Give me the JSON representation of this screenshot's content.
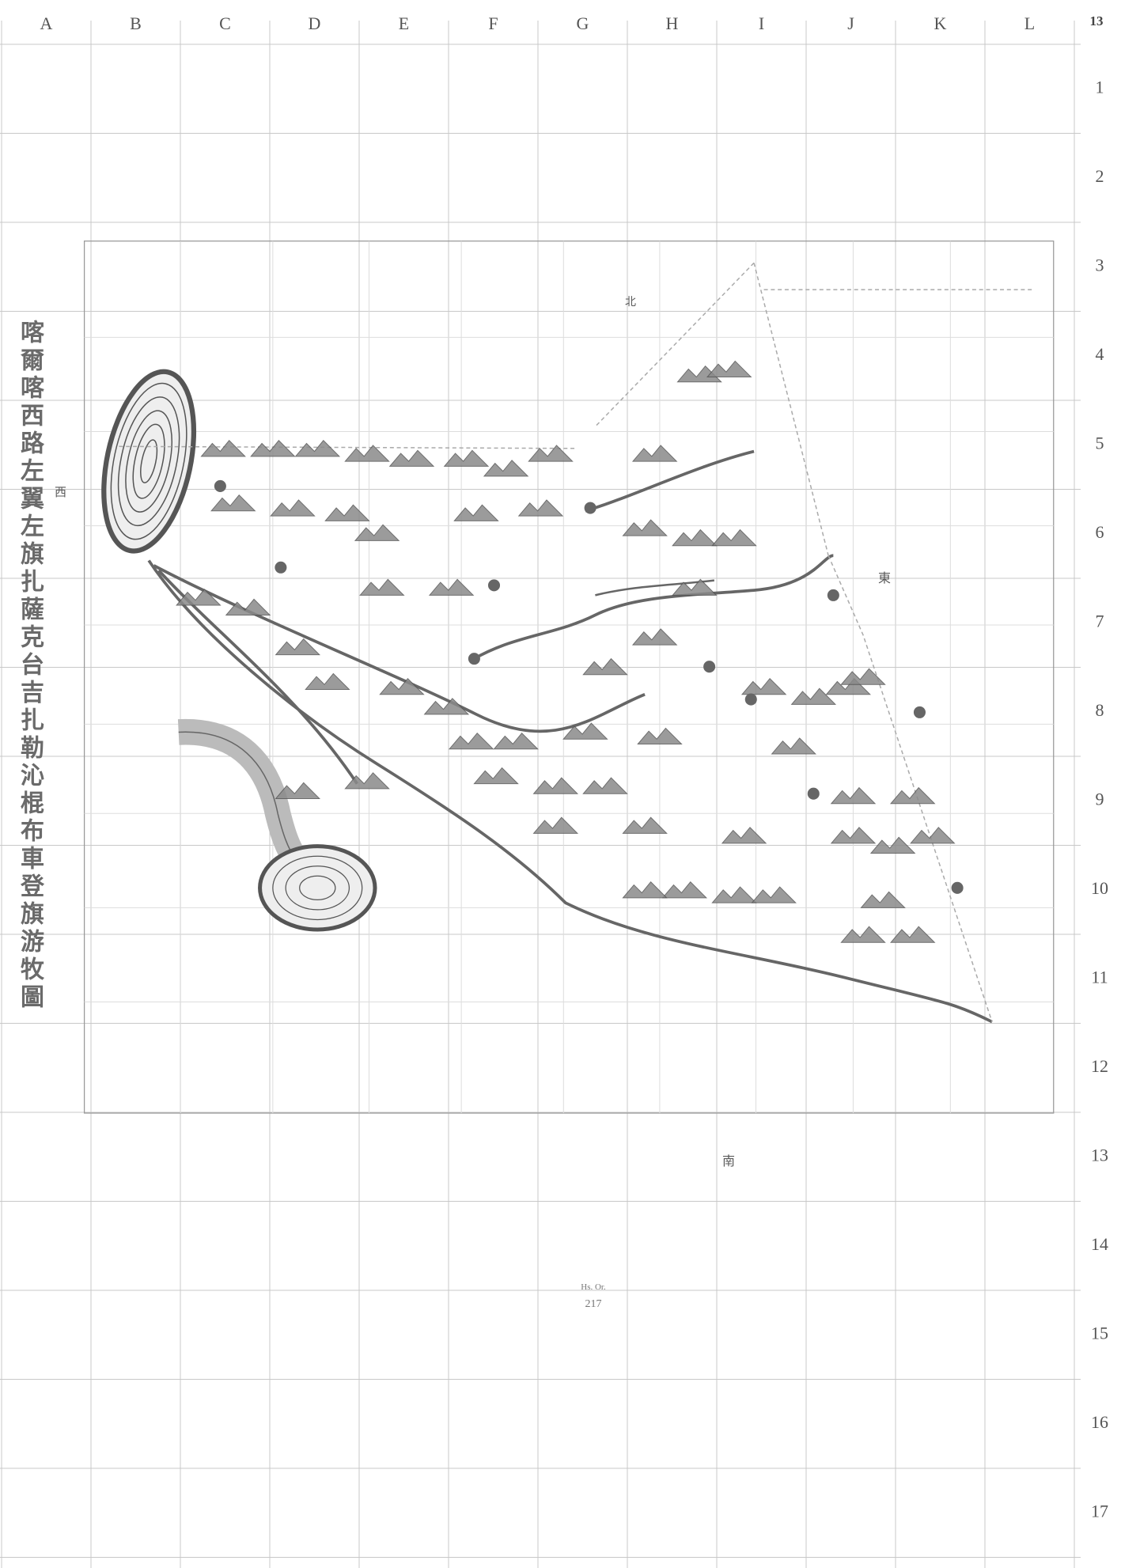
{
  "columns": [
    "A",
    "B",
    "C",
    "D",
    "E",
    "F",
    "G",
    "H",
    "I",
    "J",
    "K",
    "L"
  ],
  "corner_label": "13",
  "rows": [
    "1",
    "2",
    "3",
    "4",
    "5",
    "6",
    "7",
    "8",
    "9",
    "10",
    "11",
    "12",
    "13",
    "14",
    "15",
    "16",
    "17"
  ],
  "title": "喀爾喀西路左翼左旗扎薩克台吉扎勒沁棍布車登旗游牧圖",
  "directions": {
    "west": "西",
    "north": "北",
    "east": "東",
    "south": "南"
  },
  "shelfmark": {
    "collection": "Hs. Or.",
    "number": "217"
  }
}
